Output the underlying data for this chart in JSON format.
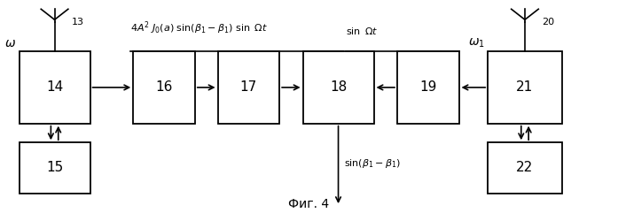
{
  "fig_width": 6.97,
  "fig_height": 2.41,
  "dpi": 100,
  "background": "#ffffff",
  "blocks": {
    "14": [
      0.03,
      0.42,
      0.115,
      0.34
    ],
    "15": [
      0.03,
      0.09,
      0.115,
      0.24
    ],
    "16": [
      0.215,
      0.42,
      0.1,
      0.34
    ],
    "17": [
      0.352,
      0.42,
      0.1,
      0.34
    ],
    "18": [
      0.49,
      0.42,
      0.115,
      0.34
    ],
    "19": [
      0.643,
      0.42,
      0.1,
      0.34
    ],
    "21": [
      0.79,
      0.42,
      0.12,
      0.34
    ],
    "22": [
      0.79,
      0.09,
      0.12,
      0.24
    ]
  },
  "label_fig": "Фиг. 4",
  "font_size_block": 11,
  "font_size_label": 8,
  "font_size_fig": 10,
  "font_size_omega": 10,
  "line_color": "#000000",
  "block_edge_color": "#000000",
  "block_face_color": "#ffffff"
}
